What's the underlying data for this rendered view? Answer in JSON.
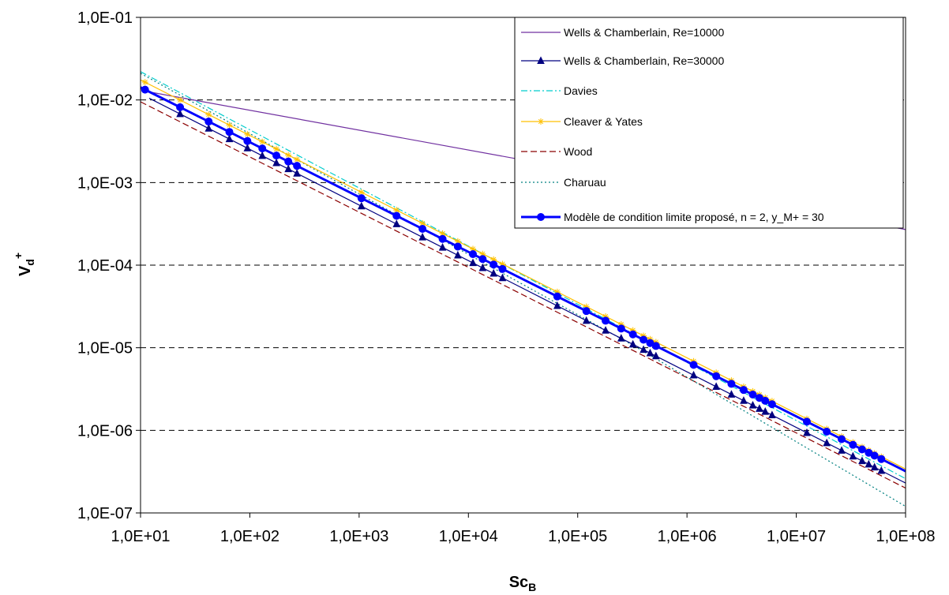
{
  "chart_data": {
    "type": "line",
    "x_scale": "log",
    "y_scale": "log",
    "xlim": [
      10,
      100000000
    ],
    "ylim": [
      1e-07,
      0.1
    ],
    "x_ticks": [
      "1,0E+01",
      "1,0E+02",
      "1,0E+03",
      "1,0E+04",
      "1,0E+05",
      "1,0E+06",
      "1,0E+07",
      "1,0E+08"
    ],
    "y_ticks": [
      "1,0E-01",
      "1,0E-02",
      "1,0E-03",
      "1,0E-04",
      "1,0E-05",
      "1,0E-06",
      "1,0E-07"
    ],
    "xlabel": {
      "main": "Sc",
      "sub": "B"
    },
    "ylabel": {
      "main": "V",
      "sub": "d",
      "sup": "+"
    },
    "grid": "horizontal dashed",
    "legend_position": "top-right",
    "series": [
      {
        "name": "Wells & Chamberlain, Re=10000",
        "color": "#7030A0",
        "style": "solid",
        "marker": "none",
        "points": [
          [
            12,
            0.0125
          ],
          [
            100000000,
            0.00027
          ]
        ]
      },
      {
        "name": "Wells & Chamberlain, Re=30000",
        "color": "#000080",
        "style": "solid",
        "marker": "triangle",
        "points": [
          [
            12,
            0.0105
          ],
          [
            100000000,
            2.3e-07
          ]
        ]
      },
      {
        "name": "Davies",
        "color": "#00CCCC",
        "style": "dashdot",
        "marker": "none",
        "points": [
          [
            10,
            0.022
          ],
          [
            100000000,
            2.6e-07
          ]
        ]
      },
      {
        "name": "Cleaver & Yates",
        "color": "#FFC000",
        "style": "solid",
        "marker": "star",
        "points": [
          [
            10,
            0.0175
          ],
          [
            100000000,
            3.4e-07
          ]
        ]
      },
      {
        "name": "Wood",
        "color": "#8B0000",
        "style": "dashed",
        "marker": "none",
        "points": [
          [
            10,
            0.0095
          ],
          [
            100000000,
            2e-07
          ]
        ]
      },
      {
        "name": "Charuau",
        "color": "#008080",
        "style": "dotted",
        "marker": "none",
        "points": [
          [
            10,
            0.021
          ],
          [
            330000,
            1.05e-05
          ],
          [
            100000000,
            1.2e-07
          ]
        ]
      },
      {
        "name": "Modèle de condition limite proposé, n = 2, y_M+ = 30",
        "color": "#0000FF",
        "style": "solid",
        "marker": "circle",
        "bold": true,
        "points": [
          [
            10,
            0.0142
          ],
          [
            100000000,
            3.2e-07
          ]
        ]
      }
    ],
    "marker_x": [
      11,
      23,
      42,
      65,
      95,
      130,
      175,
      225,
      270,
      1050,
      2200,
      3800,
      5800,
      8000,
      11000,
      13500,
      17000,
      20500,
      65000,
      120000,
      180000,
      250000,
      320000,
      400000,
      460000,
      520000,
      1150000,
      1850000,
      2550000,
      3300000,
      4000000,
      4600000,
      5200000,
      6000000,
      12500000,
      19000000,
      26000000,
      33000000,
      40000000,
      46000000,
      52000000,
      60000000
    ]
  }
}
